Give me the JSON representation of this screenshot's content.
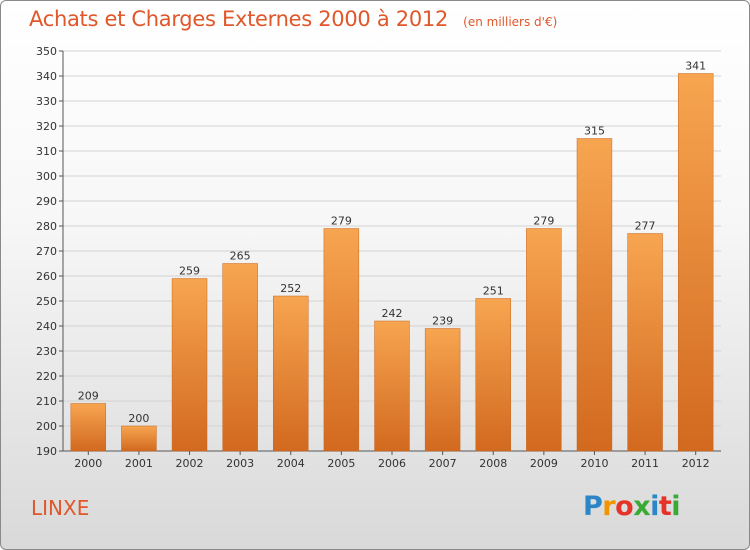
{
  "header": {
    "title": "Achats et Charges Externes 2000 à 2012",
    "subtitle": "(en milliers d'€)"
  },
  "footer": {
    "town": "LINXE",
    "logo_text": "Proxiti"
  },
  "colors": {
    "bar_light": "#f7a550",
    "bar_dark": "#d2691f",
    "accent": "#e0572a",
    "grid": "#d3d3d3"
  },
  "chart_data": {
    "type": "bar",
    "title": "Achats et Charges Externes 2000 à 2012",
    "subtitle": "(en milliers d'€)",
    "xlabel": "",
    "ylabel": "",
    "categories": [
      "2000",
      "2001",
      "2002",
      "2003",
      "2004",
      "2005",
      "2006",
      "2007",
      "2008",
      "2009",
      "2010",
      "2011",
      "2012"
    ],
    "values": [
      209,
      200,
      259,
      265,
      252,
      279,
      242,
      239,
      251,
      279,
      315,
      277,
      341
    ],
    "ylim": [
      190,
      350
    ],
    "yticks": [
      190,
      200,
      210,
      220,
      230,
      240,
      250,
      260,
      270,
      280,
      290,
      300,
      310,
      320,
      330,
      340,
      350
    ],
    "grid": true,
    "data_labels": true
  }
}
